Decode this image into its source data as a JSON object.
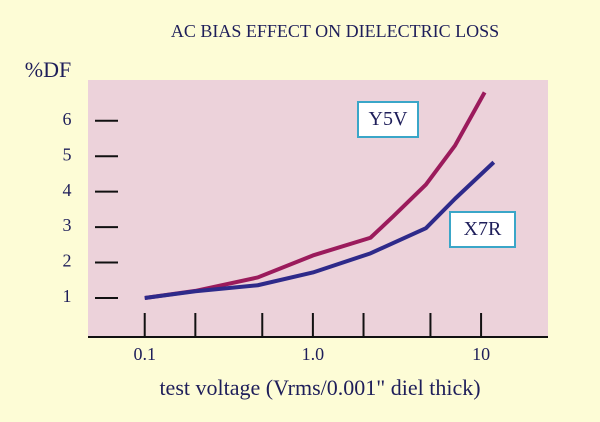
{
  "chart_data": {
    "type": "line",
    "title": "AC BIAS EFFECT ON DIELECTRIC LOSS",
    "y_label": "%DF",
    "x_label": "test voltage (Vrms/0.001\" diel thick)",
    "x_scale": "log",
    "xlim": [
      0.046,
      25
    ],
    "xticks": [
      0.1,
      {
        "value": 1,
        "label": "1.0"
      },
      10
    ],
    "xminorticks": [
      0.2,
      0.5,
      2,
      5
    ],
    "ylim": [
      -0.1,
      7.15
    ],
    "yticks": [
      1,
      2,
      3,
      4,
      5,
      6
    ],
    "series": [
      {
        "name": "Y5V",
        "color": "#9b1b5c",
        "x": [
          0.1,
          0.2,
          0.47,
          1,
          2.2,
          3,
          4.7,
          7,
          10.5
        ],
        "values": [
          1,
          1.2,
          1.58,
          2.2,
          2.7,
          3.3,
          4.2,
          5.3,
          6.8
        ]
      },
      {
        "name": "X7R",
        "color": "#2e2a8a",
        "x": [
          0.1,
          0.2,
          0.47,
          1,
          2.2,
          4.7,
          7,
          11.9
        ],
        "values": [
          1,
          1.19,
          1.36,
          1.72,
          2.26,
          2.97,
          3.8,
          4.83
        ]
      }
    ]
  }
}
